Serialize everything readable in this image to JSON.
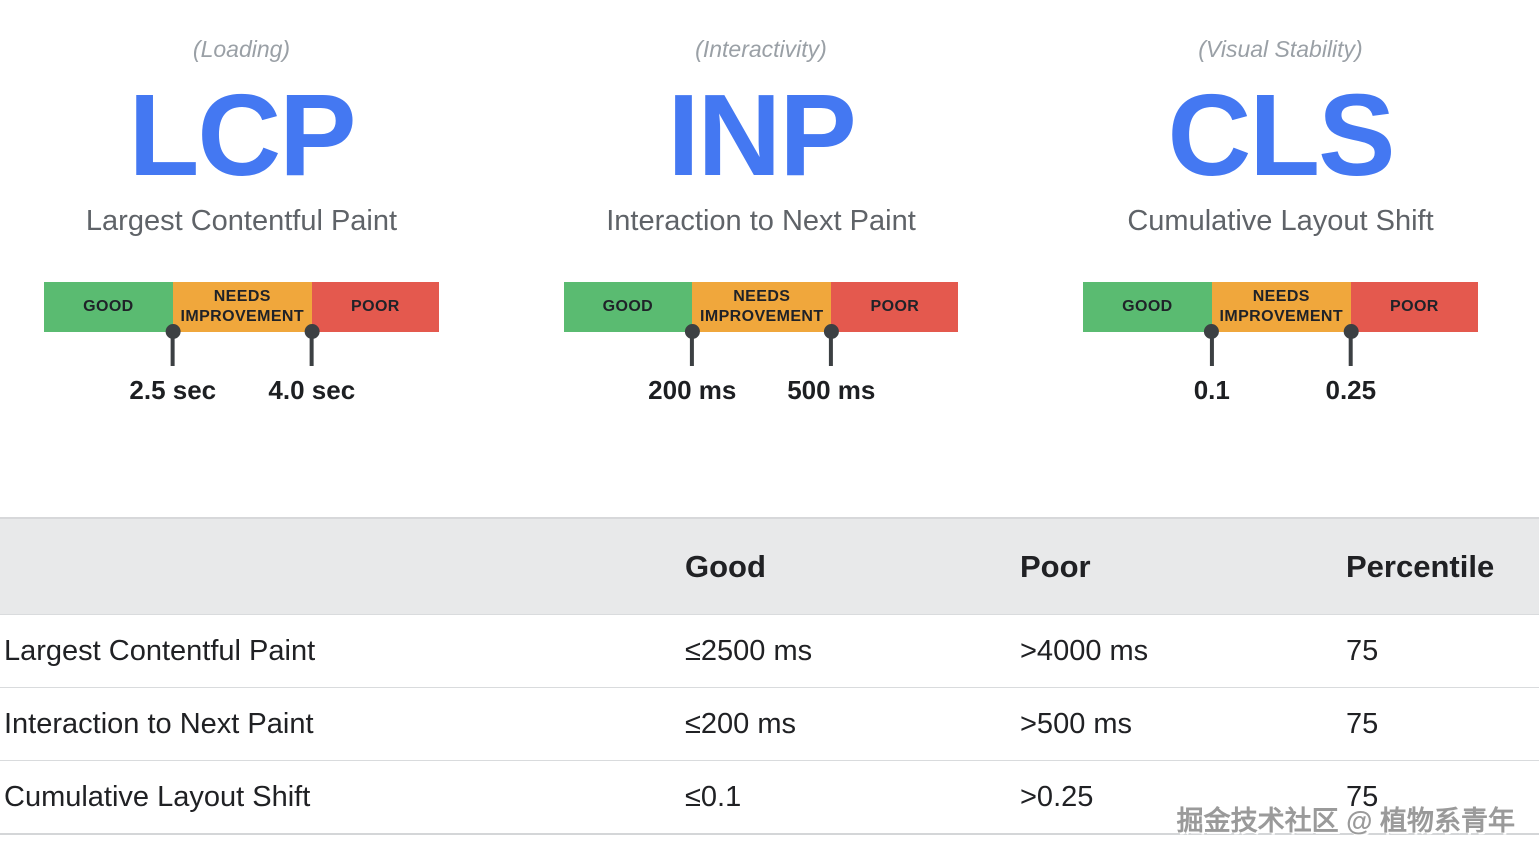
{
  "colors": {
    "accent_blue": "#4478f2",
    "good_green": "#5abb71",
    "needs_improvement_orange": "#f0a73c",
    "poor_red": "#e4594e",
    "table_header_bg": "#e8e9ea"
  },
  "metrics": [
    {
      "category": "(Loading)",
      "abbr": "LCP",
      "name": "Largest Contentful Paint",
      "segments": [
        "GOOD",
        "NEEDS IMPROVEMENT",
        "POOR"
      ],
      "thresholds": [
        {
          "label": "2.5 sec"
        },
        {
          "label": "4.0 sec"
        }
      ]
    },
    {
      "category": "(Interactivity)",
      "abbr": "INP",
      "name": "Interaction to Next Paint",
      "segments": [
        "GOOD",
        "NEEDS IMPROVEMENT",
        "POOR"
      ],
      "thresholds": [
        {
          "label": "200 ms"
        },
        {
          "label": "500 ms"
        }
      ]
    },
    {
      "category": "(Visual Stability)",
      "abbr": "CLS",
      "name": "Cumulative Layout Shift",
      "segments": [
        "GOOD",
        "NEEDS IMPROVEMENT",
        "POOR"
      ],
      "thresholds": [
        {
          "label": "0.1"
        },
        {
          "label": "0.25"
        }
      ]
    }
  ],
  "table": {
    "headers": {
      "metric": "",
      "good": "Good",
      "poor": "Poor",
      "percentile": "Percentile"
    },
    "rows": [
      {
        "metric": "Largest Contentful Paint",
        "good": "≤2500 ms",
        "poor": ">4000 ms",
        "percentile": "75"
      },
      {
        "metric": "Interaction to Next Paint",
        "good": "≤200 ms",
        "poor": ">500 ms",
        "percentile": "75"
      },
      {
        "metric": "Cumulative Layout Shift",
        "good": "≤0.1",
        "poor": ">0.25",
        "percentile": "75"
      }
    ]
  },
  "watermark": "掘金技术社区 @ 植物系青年"
}
